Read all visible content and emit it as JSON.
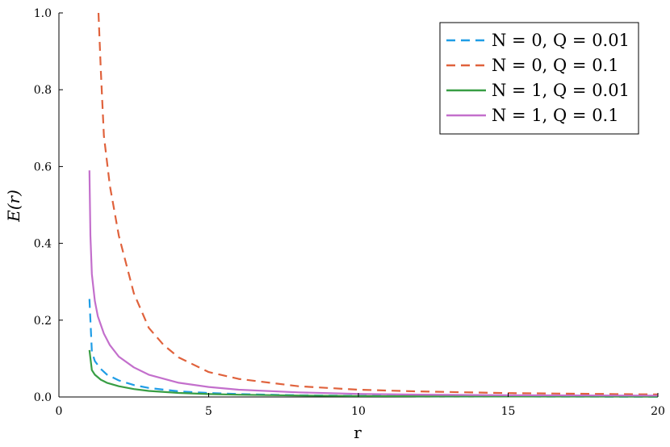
{
  "chart_data": {
    "type": "line",
    "xlabel": "r",
    "ylabel": "E(r)",
    "xlim": [
      0,
      20
    ],
    "ylim": [
      0,
      1.0
    ],
    "xticks": [
      0,
      5,
      10,
      15,
      20
    ],
    "yticks": [
      0.0,
      0.2,
      0.4,
      0.6,
      0.8,
      1.0
    ],
    "xtick_labels": [
      "0",
      "5",
      "10",
      "15",
      "20"
    ],
    "ytick_labels": [
      "0.0",
      "0.2",
      "0.4",
      "0.6",
      "0.8",
      "1.0"
    ],
    "grid": false,
    "legend_position": "top-right",
    "series": [
      {
        "name": "N = 0, Q = 0.01",
        "color": "#1f9de6",
        "dash": "dashed",
        "x": [
          1.02,
          1.1,
          1.2,
          1.4,
          1.6,
          2.0,
          2.5,
          3.0,
          4.0,
          5.0,
          6.0,
          8.0,
          10.0,
          12.0,
          15.0,
          20.0
        ],
        "y": [
          0.255,
          0.118,
          0.0935,
          0.073,
          0.0585,
          0.043,
          0.031,
          0.0235,
          0.0147,
          0.0102,
          0.0075,
          0.0044,
          0.0029,
          0.002,
          0.0013,
          0.0007
        ]
      },
      {
        "name": "N = 0, Q = 0.1",
        "color": "#e0623c",
        "dash": "dashed",
        "x": [
          1.32,
          1.4,
          1.5,
          1.7,
          2.0,
          2.5,
          3.0,
          3.5,
          4.0,
          5.0,
          6.0,
          8.0,
          10.0,
          12.0,
          15.0,
          20.0
        ],
        "y": [
          1.0,
          0.85,
          0.68,
          0.55,
          0.42,
          0.27,
          0.18,
          0.135,
          0.103,
          0.065,
          0.047,
          0.028,
          0.019,
          0.0145,
          0.01,
          0.0065
        ]
      },
      {
        "name": "N = 1, Q = 0.01",
        "color": "#389e44",
        "dash": "solid",
        "x": [
          1.02,
          1.1,
          1.2,
          1.4,
          1.6,
          2.0,
          2.5,
          3.0,
          4.0,
          5.0,
          6.0,
          8.0,
          10.0,
          12.0,
          15.0,
          20.0
        ],
        "y": [
          0.122,
          0.07,
          0.058,
          0.045,
          0.037,
          0.028,
          0.0205,
          0.0158,
          0.0105,
          0.0076,
          0.0058,
          0.0037,
          0.0026,
          0.0019,
          0.0013,
          0.0008
        ]
      },
      {
        "name": "N = 1, Q = 0.1",
        "color": "#c36fcc",
        "dash": "solid",
        "x": [
          1.02,
          1.05,
          1.1,
          1.2,
          1.3,
          1.5,
          1.7,
          2.0,
          2.5,
          3.0,
          4.0,
          5.0,
          6.0,
          8.0,
          10.0,
          12.0,
          15.0,
          20.0
        ],
        "y": [
          0.59,
          0.42,
          0.32,
          0.25,
          0.21,
          0.165,
          0.135,
          0.105,
          0.077,
          0.058,
          0.037,
          0.026,
          0.019,
          0.012,
          0.008,
          0.006,
          0.0045,
          0.0035
        ]
      }
    ]
  }
}
